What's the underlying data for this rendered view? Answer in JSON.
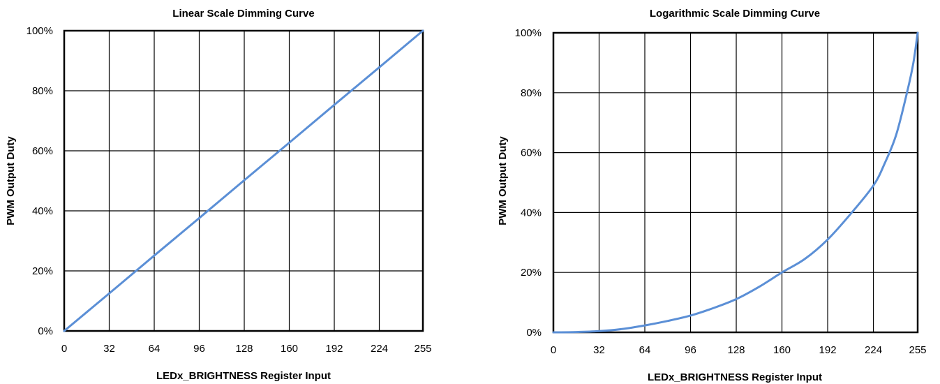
{
  "chart_data": [
    {
      "type": "line",
      "title": "Linear Scale Dimming Curve",
      "xlabel": "LEDx_BRIGHTNESS Register Input",
      "ylabel": "PWM Output Duty",
      "xlim": [
        0,
        255
      ],
      "ylim": [
        0,
        100
      ],
      "x_ticks": [
        "0",
        "32",
        "64",
        "96",
        "128",
        "160",
        "192",
        "224",
        "255"
      ],
      "y_ticks": [
        "0%",
        "20%",
        "40%",
        "60%",
        "80%",
        "100%"
      ],
      "grid": true,
      "series_color": "#5b8fd6",
      "series": [
        {
          "x": [
            0,
            32,
            64,
            96,
            128,
            160,
            192,
            224,
            255
          ],
          "y": [
            0,
            12.5,
            25.1,
            37.6,
            50.2,
            62.7,
            75.3,
            87.8,
            100
          ]
        }
      ]
    },
    {
      "type": "line",
      "title": "Logarithmic Scale Dimming Curve",
      "xlabel": "LEDx_BRIGHTNESS Register Input",
      "ylabel": "PWM Output Duty",
      "xlim": [
        0,
        255
      ],
      "ylim": [
        0,
        100
      ],
      "x_ticks": [
        "0",
        "32",
        "64",
        "96",
        "128",
        "160",
        "192",
        "224",
        "255"
      ],
      "y_ticks": [
        "0%",
        "20%",
        "40%",
        "60%",
        "80%",
        "100%"
      ],
      "grid": true,
      "series_color": "#5b8fd6",
      "series": [
        {
          "x": [
            0,
            16,
            32,
            48,
            64,
            80,
            96,
            112,
            128,
            144,
            160,
            176,
            192,
            208,
            224,
            232,
            240,
            248,
            252,
            255
          ],
          "y": [
            0,
            0.1,
            0.4,
            1.1,
            2.3,
            3.8,
            5.6,
            8.1,
            11.1,
            15.2,
            20,
            24.5,
            31,
            39.5,
            49,
            56.5,
            66,
            81,
            90,
            100
          ]
        }
      ]
    }
  ]
}
